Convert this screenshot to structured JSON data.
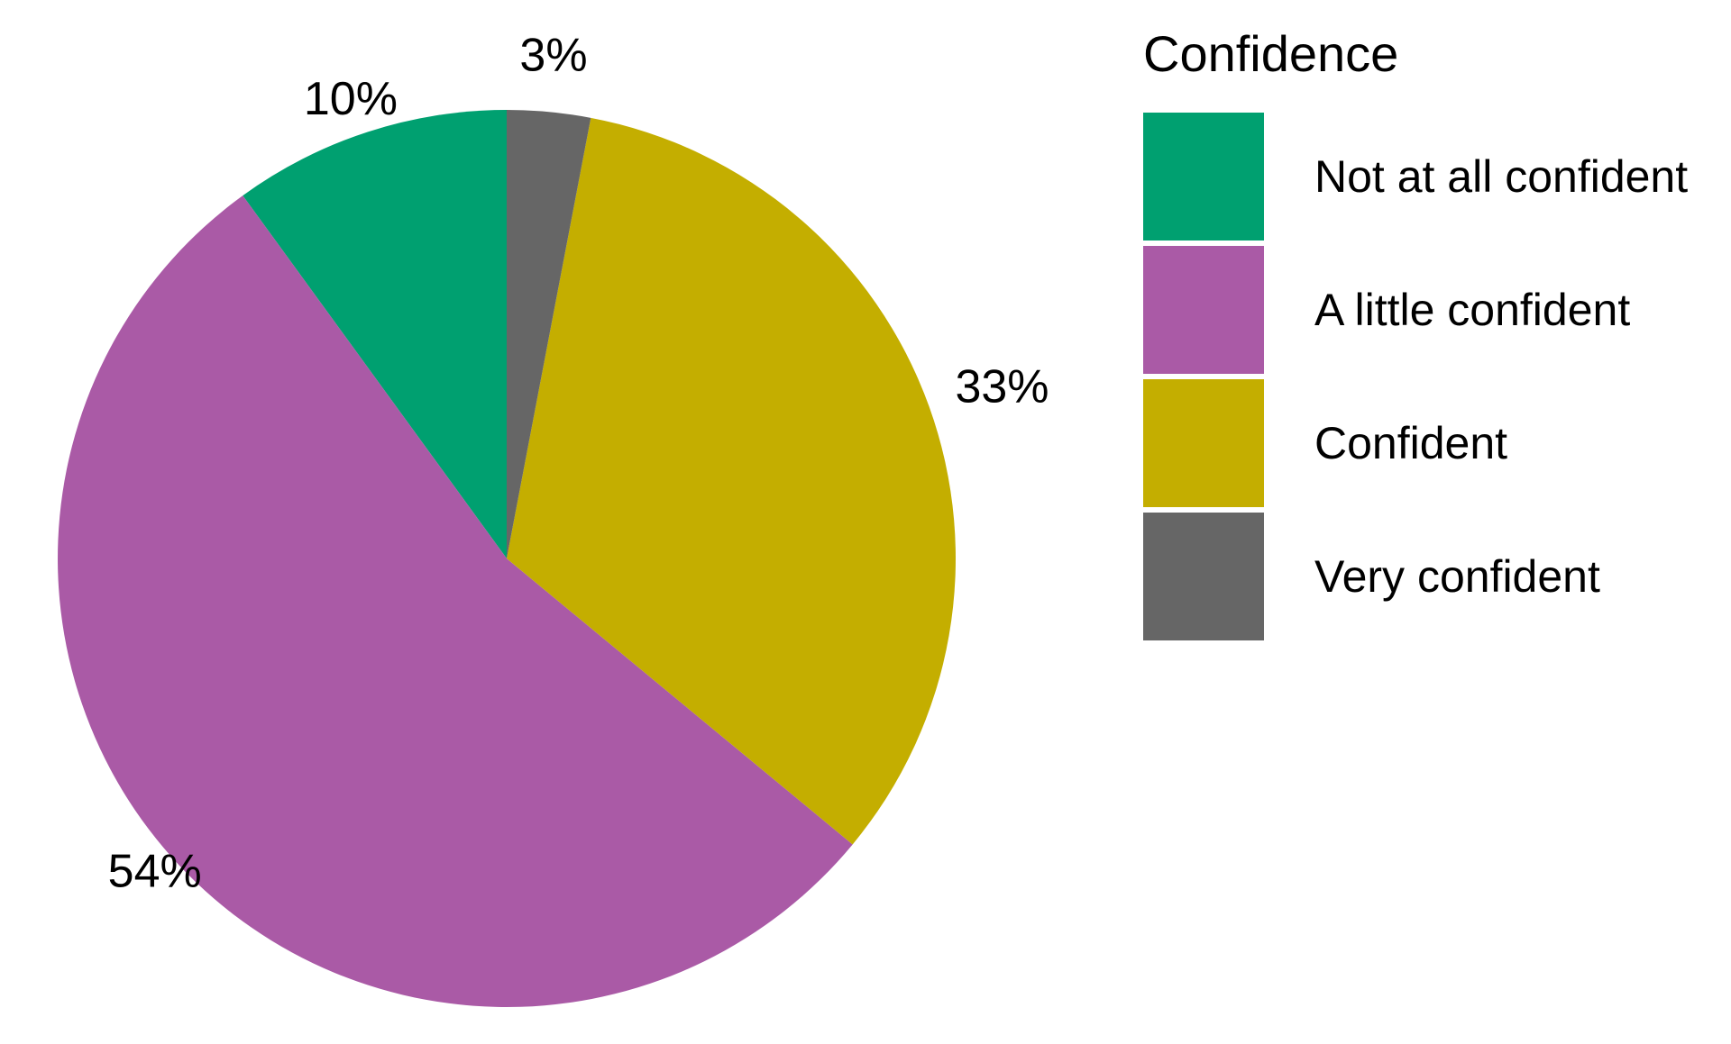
{
  "chart_data": {
    "type": "pie",
    "title": "",
    "legend_title": "Confidence",
    "legend_position": "right",
    "start": "top",
    "direction": "counterclockwise",
    "categories": [
      "Not at all confident",
      "A little confident",
      "Confident",
      "Very confident"
    ],
    "values": [
      10,
      54,
      33,
      3
    ],
    "labels": [
      "10%",
      "54%",
      "33%",
      "3%"
    ],
    "colors": [
      "#00A070",
      "#AA5AA6",
      "#C4AE00",
      "#666666"
    ]
  }
}
